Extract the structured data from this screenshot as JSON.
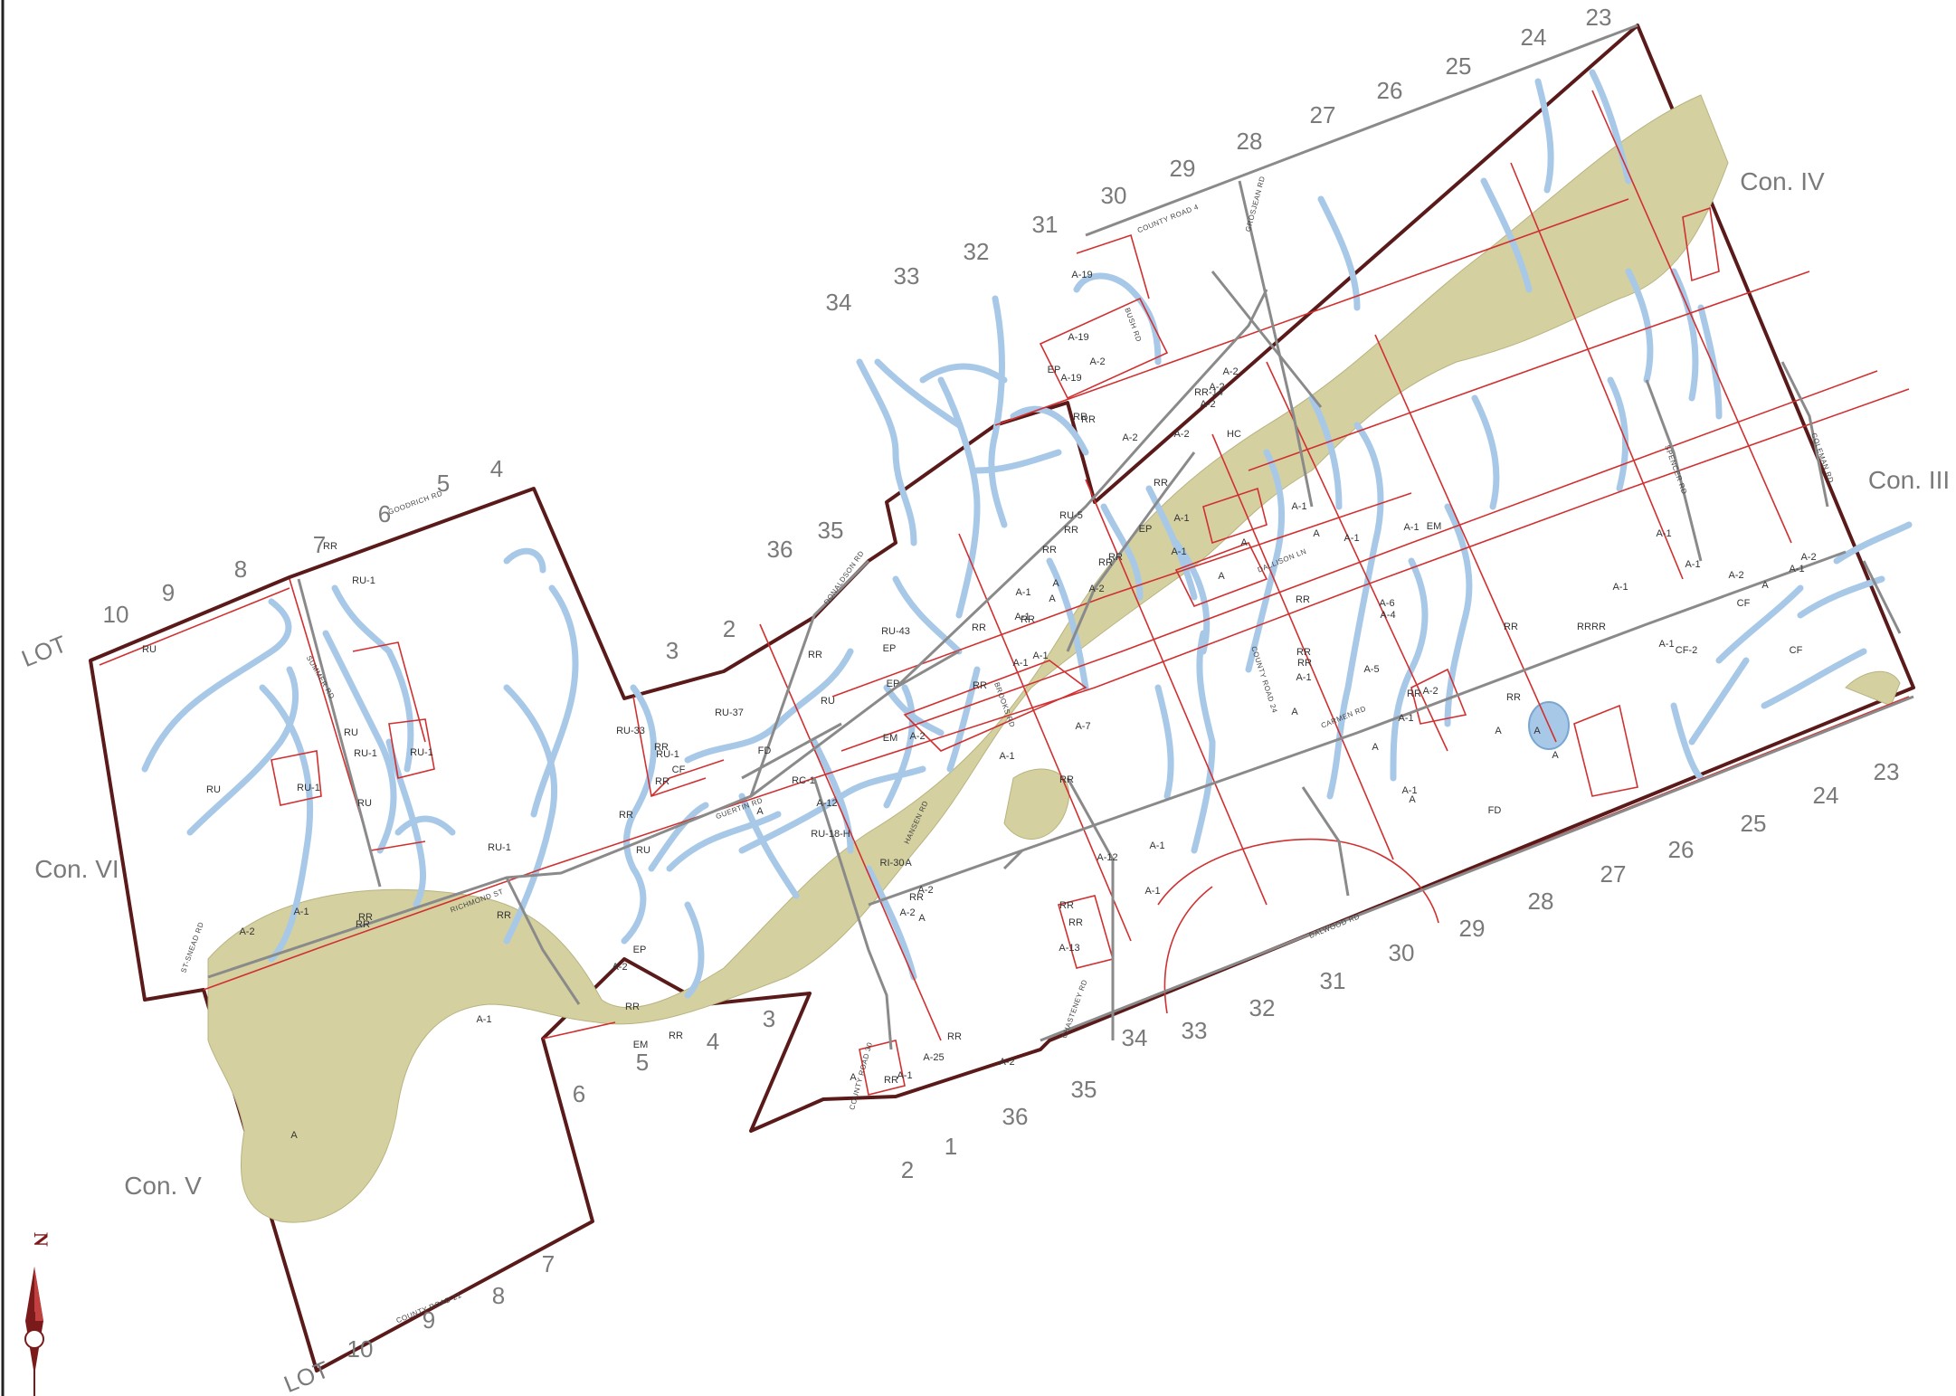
{
  "colors": {
    "water": "#a8c8e8",
    "water_edge": "#7aa7d2",
    "wetland": "#d4d0a0",
    "boundary": "#5a1a1a",
    "zone_line": "#d03030",
    "lot_line": "#b8b8b8",
    "road": "#888888"
  },
  "icons": {
    "north_arrow": "north-arrow-icon"
  },
  "north_label": "N",
  "concessions": [
    {
      "key": "con-iv",
      "label": "Con. IV"
    },
    {
      "key": "con-iii",
      "label": "Con. III"
    },
    {
      "key": "con-vi",
      "label": "Con. VI"
    },
    {
      "key": "con-v",
      "label": "Con. V"
    }
  ],
  "lot_word": "LOT",
  "lots_top": [
    "10",
    "9",
    "8",
    "7",
    "6",
    "5",
    "4",
    "3",
    "2",
    "36",
    "35",
    "34",
    "33",
    "32",
    "31",
    "30",
    "29",
    "28",
    "27",
    "26",
    "25",
    "24",
    "23"
  ],
  "lots_bottom": [
    "10",
    "9",
    "8",
    "7",
    "6",
    "5",
    "4",
    "3",
    "2",
    "1",
    "36",
    "35",
    "34",
    "33",
    "32",
    "31",
    "30",
    "29",
    "28",
    "27",
    "26",
    "25",
    "24",
    "23"
  ],
  "roads": [
    "GOODRICH RD",
    "SUMMER RD",
    "RICHMOND ST",
    "GUERTIN RD",
    "DONALDSON RD",
    "COUNTY ROAD 30",
    "HANSEN RD",
    "BROOKS RD",
    "BUSH RD",
    "COUNTY ROAD 4",
    "GROSJEAN RD",
    "DALLISON LN",
    "COUNTY ROAD 24",
    "CARMEN RD",
    "SPENCER RD",
    "COLEMAN RD",
    "DALWOOD RD",
    "CHASTENEY RD",
    "COUNTY ROAD 21",
    "ST-SNEAD RD"
  ],
  "zones": [
    "RR",
    "RU",
    "RU-1",
    "RU",
    "RU-1",
    "RU-1",
    "RU-1",
    "RU",
    "RU",
    "A-1",
    "RR",
    "A-2",
    "RR",
    "A-1",
    "A",
    "RU-1",
    "RR",
    "EP",
    "RU-33",
    "RR",
    "RR",
    "RU-1",
    "CF",
    "RR",
    "RU-37",
    "FD",
    "RU",
    "A-2",
    "RR",
    "EM",
    "RR",
    "A",
    "RC-1",
    "A-12",
    "RU-18-H",
    "A",
    "A",
    "RI-30",
    "RR",
    "A-2",
    "A-2",
    "RR",
    "A-25",
    "A-2",
    "RR",
    "A-1",
    "A",
    "EP",
    "RR",
    "RU",
    "RU-43",
    "EM",
    "EP",
    "A-2",
    "RR",
    "A-1",
    "RR",
    "A-1",
    "RR",
    "A",
    "A-1",
    "RU-5",
    "RR",
    "RR",
    "A-1",
    "A",
    "A-2",
    "A-7",
    "RR",
    "A-12",
    "A-1",
    "A-13",
    "RR",
    "RR",
    "A-1",
    "A-1",
    "A-19",
    "A-19",
    "A-19",
    "EP",
    "RR",
    "A-2",
    "A-2",
    "RR",
    "RR",
    "RR",
    "EP",
    "A-1",
    "RR",
    "A-2",
    "A-2",
    "RR-14",
    "A-2",
    "HC",
    "A-1",
    "A",
    "A-2",
    "A",
    "A-1",
    "RR",
    "A-6",
    "A-4",
    "A-5",
    "RR",
    "A-2",
    "A-1",
    "FD",
    "A",
    "A",
    "A-1",
    "A",
    "A-1",
    "RR",
    "RR",
    "A-1",
    "A",
    "A-1",
    "EM",
    "A",
    "A",
    "RR",
    "RR",
    "RR",
    "A-1",
    "A-1",
    "CF-2",
    "CF",
    "CF",
    "A-1",
    "A-2",
    "A",
    "A-1",
    "A-1",
    "A-2",
    "RR",
    "A"
  ]
}
